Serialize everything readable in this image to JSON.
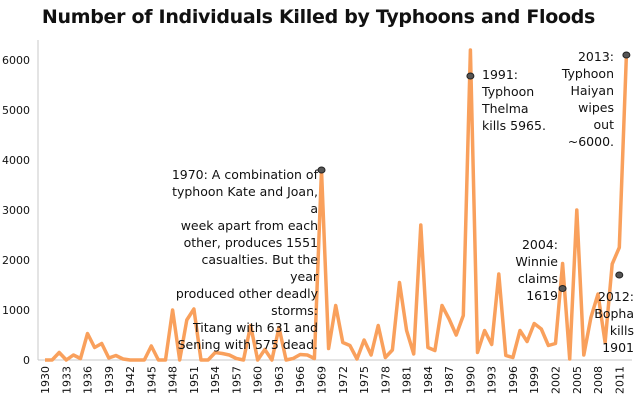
{
  "chart_data": {
    "type": "line",
    "title": "Number of Individuals Killed by Typhoons and Floods",
    "xlabel": "",
    "ylabel": "",
    "ylim": [
      0,
      6000
    ],
    "yticks": [
      0,
      1000,
      2000,
      3000,
      4000,
      5000,
      6000
    ],
    "xtick_labels": [
      "1930",
      "1933",
      "1936",
      "1939",
      "1942",
      "1945",
      "1948",
      "1951",
      "1954",
      "1957",
      "1960",
      "1963",
      "1966",
      "1969",
      "1972",
      "1975",
      "1978",
      "1981",
      "1984",
      "1987",
      "1990",
      "1993",
      "1996",
      "1999",
      "2002",
      "2005",
      "2008",
      "2011"
    ],
    "grid": false,
    "line_color": "#f9a05c",
    "x": [
      1930,
      1931,
      1932,
      1933,
      1934,
      1935,
      1936,
      1937,
      1938,
      1939,
      1940,
      1941,
      1942,
      1943,
      1944,
      1945,
      1946,
      1947,
      1948,
      1949,
      1950,
      1951,
      1952,
      1953,
      1954,
      1955,
      1956,
      1957,
      1958,
      1959,
      1960,
      1961,
      1962,
      1963,
      1964,
      1965,
      1966,
      1967,
      1968,
      1969,
      1970,
      1971,
      1972,
      1973,
      1974,
      1975,
      1976,
      1977,
      1978,
      1979,
      1980,
      1981,
      1982,
      1983,
      1984,
      1985,
      1986,
      1987,
      1988,
      1989,
      1990,
      1991,
      1992,
      1993,
      1994,
      1995,
      1996,
      1997,
      1998,
      1999,
      2000,
      2001,
      2002,
      2003,
      2004,
      2005,
      2006,
      2007,
      2008,
      2009,
      2010,
      2011,
      2012
    ],
    "values": [
      0,
      0,
      150,
      0,
      100,
      30,
      530,
      250,
      330,
      40,
      90,
      20,
      0,
      0,
      0,
      280,
      0,
      0,
      1000,
      0,
      800,
      1020,
      0,
      0,
      150,
      130,
      100,
      30,
      0,
      690,
      0,
      210,
      0,
      650,
      0,
      30,
      110,
      100,
      30,
      3800,
      230,
      1090,
      350,
      290,
      20,
      400,
      100,
      690,
      50,
      200,
      1550,
      590,
      120,
      2700,
      250,
      190,
      1090,
      820,
      500,
      890,
      6200,
      150,
      590,
      310,
      1720,
      90,
      50,
      590,
      370,
      730,
      620,
      290,
      330,
      1930,
      20,
      3000,
      100,
      850,
      1320,
      350,
      1920,
      2250,
      6100
    ],
    "annotations": [
      {
        "lines": [
          "1970: A combination of",
          "typhoon Kate and Joan, a",
          "week apart from each",
          "other, produces 1551",
          "casualties. But the year",
          "produced other deadly",
          "storms:",
          "Titang with 631 and",
          "Sening with 575 dead."
        ],
        "marker_x": 1969,
        "marker_y": 3800
      },
      {
        "lines": [
          "1991:",
          "Typhoon",
          "Thelma",
          "kills 5965."
        ],
        "marker_x": 1990,
        "marker_y": 5680
      },
      {
        "lines": [
          "2013:",
          "Typhoon",
          "Haiyan",
          "wipes out",
          "~6000."
        ],
        "marker_x": 2012,
        "marker_y": 6100
      },
      {
        "lines": [
          "2004:",
          "Winnie",
          "claims",
          "1619"
        ],
        "marker_x": 2003,
        "marker_y": 1430
      },
      {
        "lines": [
          "2012:",
          "Bopha kills",
          "1901"
        ],
        "marker_x": 2011,
        "marker_y": 1700
      }
    ]
  }
}
